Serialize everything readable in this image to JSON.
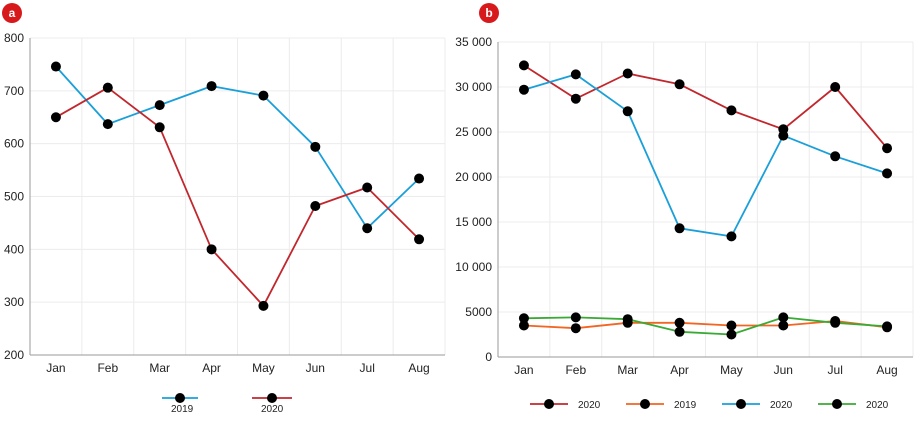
{
  "chart_data": [
    {
      "panel_label": "a",
      "type": "line",
      "categories": [
        "Jan",
        "Feb",
        "Mar",
        "Apr",
        "May",
        "Jun",
        "Jul",
        "Aug"
      ],
      "ylim": [
        200,
        800
      ],
      "yticks": [
        "200",
        "300",
        "400",
        "500",
        "600",
        "700",
        "800"
      ],
      "grid": true,
      "legend_position": "bottom",
      "series": [
        {
          "name": "2019",
          "color": "#1a9fd9",
          "values": [
            746,
            637,
            673,
            709,
            691,
            594,
            440,
            534
          ]
        },
        {
          "name": "2020",
          "color": "#c1272d",
          "values": [
            650,
            706,
            631,
            400,
            293,
            482,
            517,
            419
          ]
        }
      ]
    },
    {
      "panel_label": "b",
      "type": "line",
      "categories": [
        "Jan",
        "Feb",
        "Mar",
        "Apr",
        "May",
        "Jun",
        "Jul",
        "Aug"
      ],
      "ylim": [
        0,
        35000
      ],
      "yticks": [
        "0",
        "5000",
        "10 000",
        "15 000",
        "20 000",
        "25 000",
        "30 000",
        "35 000"
      ],
      "grid": true,
      "legend_position": "bottom",
      "series": [
        {
          "name": "2020",
          "color": "#c1272d",
          "values": [
            32400,
            28700,
            31500,
            30300,
            27400,
            25300,
            30000,
            23200
          ]
        },
        {
          "name": "2019",
          "color": "#f26522",
          "values": [
            3500,
            3200,
            3800,
            3800,
            3500,
            3500,
            4000,
            3300
          ]
        },
        {
          "name": "2020",
          "color": "#1a9fd9",
          "values": [
            29700,
            31400,
            27300,
            14300,
            13400,
            24600,
            22300,
            20400
          ]
        },
        {
          "name": "2020",
          "color": "#3aaa35",
          "values": [
            4300,
            4400,
            4200,
            2800,
            2500,
            4400,
            3800,
            3400
          ]
        }
      ]
    }
  ]
}
